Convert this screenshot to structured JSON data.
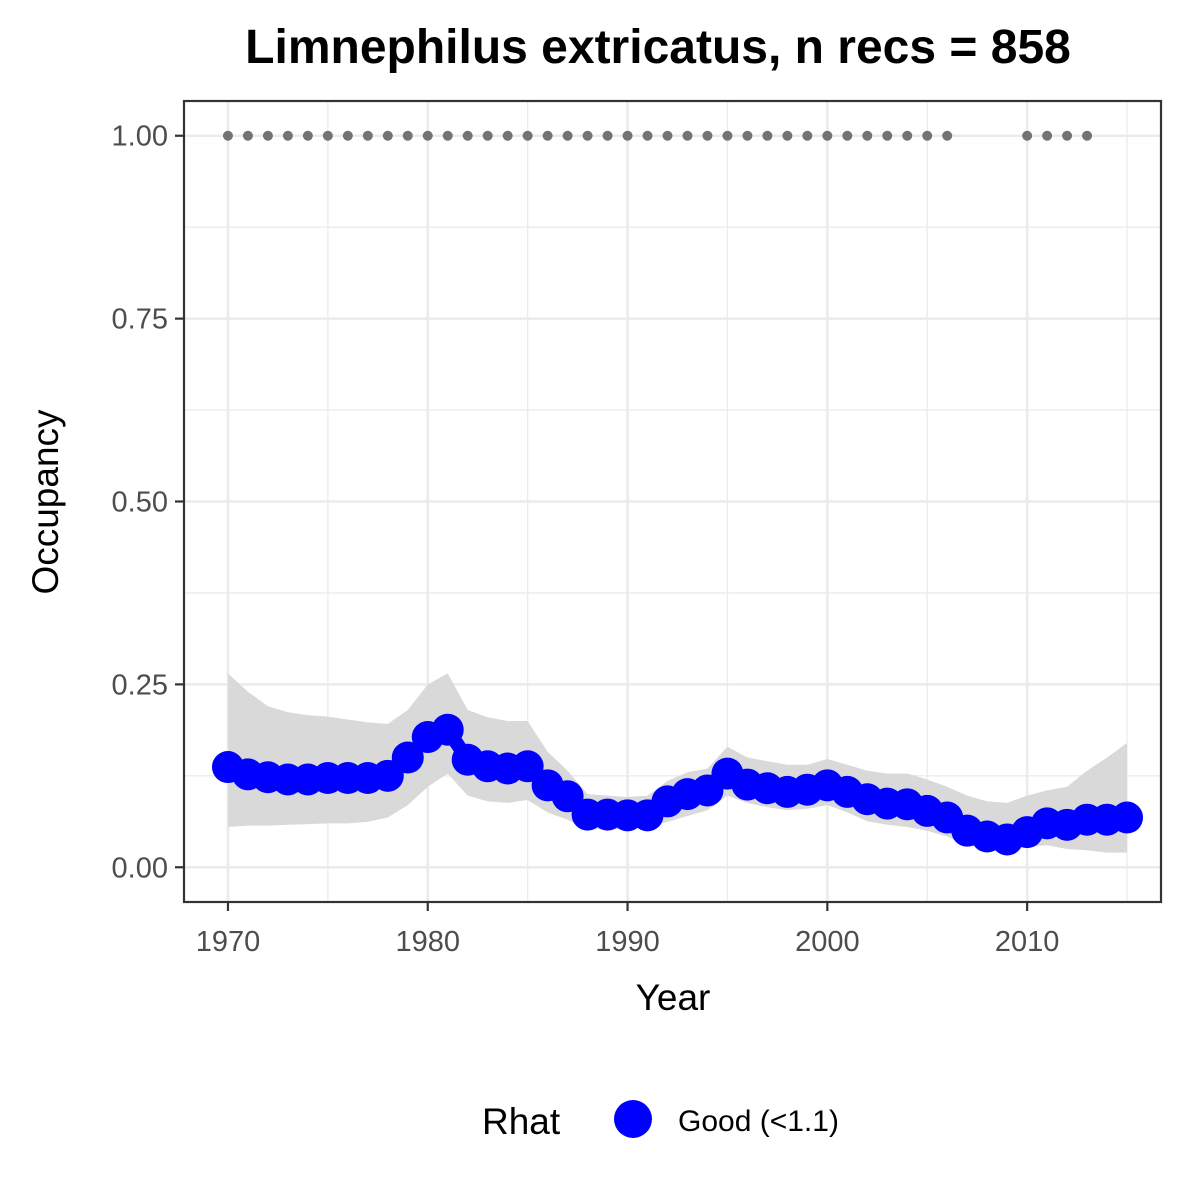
{
  "chart_data": {
    "type": "line",
    "title": "Limnephilus extricatus, n recs = 858",
    "xlabel": "Year",
    "ylabel": "Occupancy",
    "xlim": [
      1967.8,
      2016.7
    ],
    "ylim": [
      -0.0475,
      1.0475
    ],
    "x_ticks": [
      1970,
      1980,
      1990,
      2000,
      2010
    ],
    "x_tick_labels": [
      "1970",
      "1980",
      "1990",
      "2000",
      "2010"
    ],
    "y_ticks": [
      0,
      0.25,
      0.5,
      0.75,
      1.0
    ],
    "y_tick_labels": [
      "0.00",
      "0.25",
      "0.50",
      "0.75",
      "1.00"
    ],
    "grid": true,
    "series": [
      {
        "name": "Good (<1.1)",
        "x": [
          1970,
          1971,
          1972,
          1973,
          1974,
          1975,
          1976,
          1977,
          1978,
          1979,
          1980,
          1981,
          1982,
          1983,
          1984,
          1985,
          1986,
          1987,
          1988,
          1989,
          1990,
          1991,
          1992,
          1993,
          1994,
          1995,
          1996,
          1997,
          1998,
          1999,
          2000,
          2001,
          2002,
          2003,
          2004,
          2005,
          2006,
          2007,
          2008,
          2009,
          2010,
          2011,
          2012,
          2013,
          2014,
          2015
        ],
        "y": [
          0.137,
          0.127,
          0.123,
          0.12,
          0.12,
          0.122,
          0.122,
          0.122,
          0.125,
          0.15,
          0.178,
          0.188,
          0.147,
          0.138,
          0.135,
          0.138,
          0.112,
          0.097,
          0.072,
          0.072,
          0.071,
          0.071,
          0.09,
          0.1,
          0.105,
          0.128,
          0.113,
          0.108,
          0.103,
          0.106,
          0.112,
          0.103,
          0.093,
          0.087,
          0.086,
          0.077,
          0.068,
          0.05,
          0.042,
          0.038,
          0.048,
          0.06,
          0.058,
          0.065,
          0.065,
          0.068
        ],
        "lower": [
          0.055,
          0.057,
          0.057,
          0.058,
          0.059,
          0.06,
          0.06,
          0.062,
          0.068,
          0.085,
          0.11,
          0.128,
          0.098,
          0.09,
          0.088,
          0.092,
          0.075,
          0.065,
          0.052,
          0.052,
          0.052,
          0.055,
          0.062,
          0.07,
          0.078,
          0.098,
          0.088,
          0.082,
          0.078,
          0.08,
          0.085,
          0.075,
          0.063,
          0.058,
          0.055,
          0.05,
          0.042,
          0.03,
          0.025,
          0.022,
          0.028,
          0.03,
          0.025,
          0.023,
          0.02,
          0.02
        ],
        "upper": [
          0.265,
          0.24,
          0.22,
          0.212,
          0.208,
          0.206,
          0.202,
          0.198,
          0.196,
          0.215,
          0.25,
          0.265,
          0.215,
          0.205,
          0.2,
          0.2,
          0.158,
          0.132,
          0.1,
          0.098,
          0.096,
          0.098,
          0.118,
          0.13,
          0.135,
          0.165,
          0.15,
          0.145,
          0.14,
          0.14,
          0.148,
          0.14,
          0.132,
          0.128,
          0.128,
          0.12,
          0.11,
          0.098,
          0.09,
          0.088,
          0.098,
          0.105,
          0.11,
          0.132,
          0.15,
          0.17
        ]
      }
    ],
    "records": {
      "x": [
        1970,
        1971,
        1972,
        1973,
        1974,
        1975,
        1976,
        1977,
        1978,
        1979,
        1980,
        1981,
        1982,
        1983,
        1984,
        1985,
        1986,
        1987,
        1988,
        1989,
        1990,
        1991,
        1992,
        1993,
        1994,
        1995,
        1996,
        1997,
        1998,
        1999,
        2000,
        2001,
        2002,
        2003,
        2004,
        2005,
        2006,
        2010,
        2011,
        2012,
        2013
      ],
      "y": 1.0
    },
    "legend": {
      "title": "Rhat",
      "placement": "bottom",
      "items": [
        "Good (<1.1)"
      ]
    },
    "colors": {
      "line": "#0000ff",
      "ribbon": "#d9d9d9",
      "records": "#737373",
      "grid": "#ebebeb",
      "border": "#333333",
      "tick_text": "#4d4d4d"
    }
  }
}
